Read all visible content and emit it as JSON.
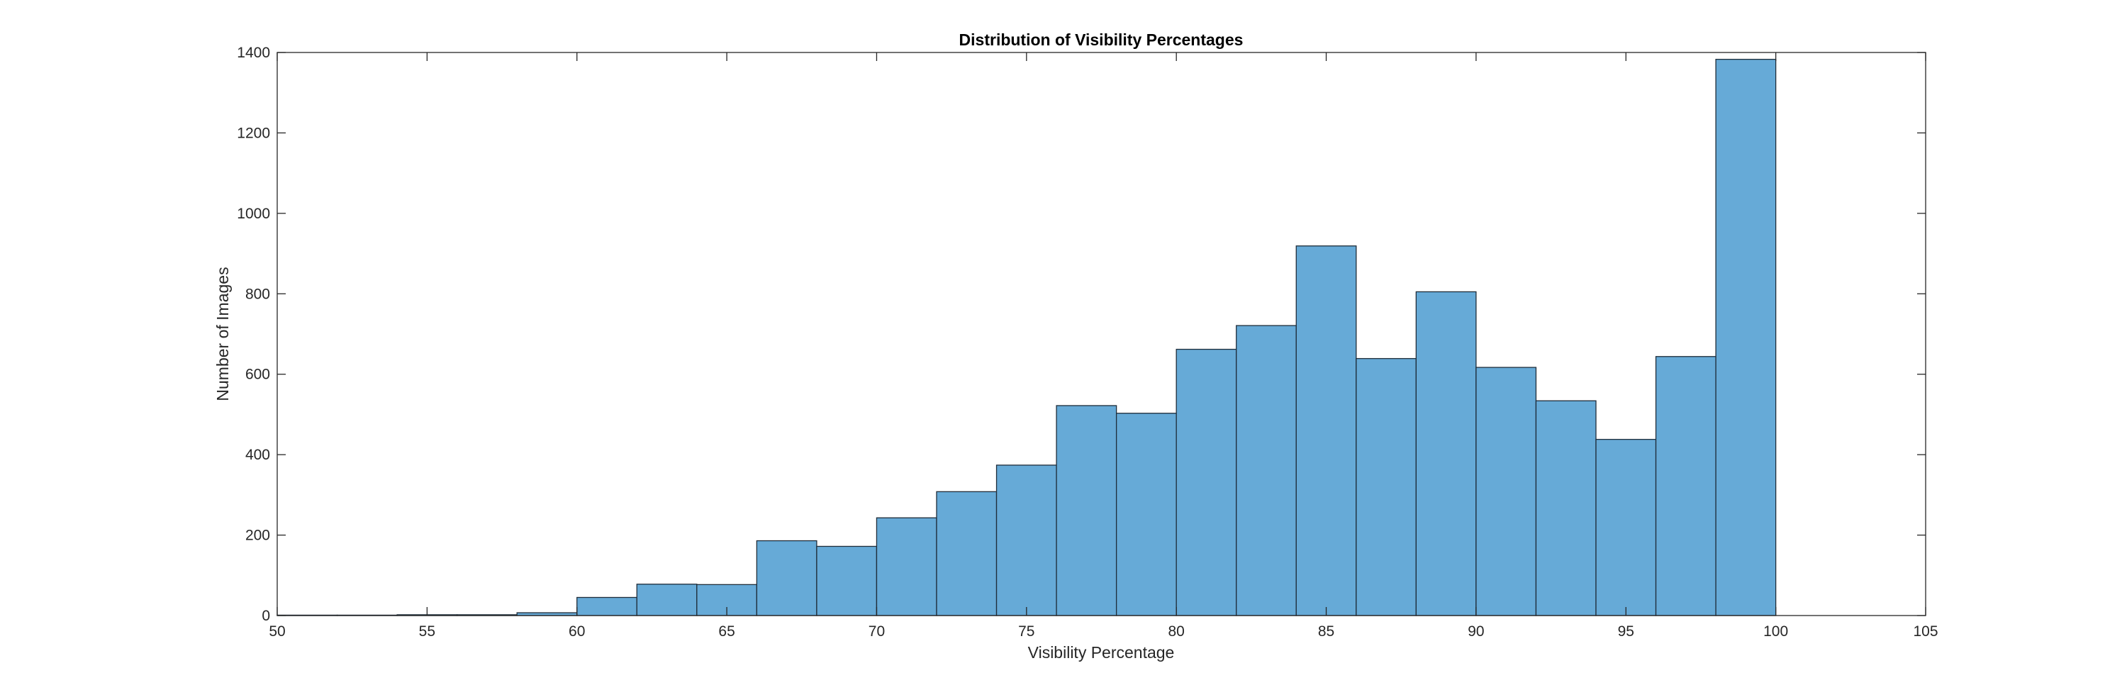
{
  "chart_data": {
    "type": "bar",
    "title": "Distribution of Visibility Percentages",
    "xlabel": "Visibility Percentage",
    "ylabel": "Number of Images",
    "xlim": [
      50,
      105
    ],
    "ylim": [
      0,
      1400
    ],
    "xticks": [
      50,
      55,
      60,
      65,
      70,
      75,
      80,
      85,
      90,
      95,
      100,
      105
    ],
    "yticks": [
      0,
      200,
      400,
      600,
      800,
      1000,
      1200,
      1400
    ],
    "bin_width": 2,
    "bins": [
      {
        "start": 50,
        "end": 52,
        "count": 1
      },
      {
        "start": 52,
        "end": 54,
        "count": 1
      },
      {
        "start": 54,
        "end": 56,
        "count": 2
      },
      {
        "start": 56,
        "end": 58,
        "count": 2
      },
      {
        "start": 58,
        "end": 60,
        "count": 7
      },
      {
        "start": 60,
        "end": 62,
        "count": 45
      },
      {
        "start": 62,
        "end": 64,
        "count": 78
      },
      {
        "start": 64,
        "end": 66,
        "count": 77
      },
      {
        "start": 66,
        "end": 68,
        "count": 186
      },
      {
        "start": 68,
        "end": 70,
        "count": 172
      },
      {
        "start": 70,
        "end": 72,
        "count": 243
      },
      {
        "start": 72,
        "end": 74,
        "count": 308
      },
      {
        "start": 74,
        "end": 76,
        "count": 374
      },
      {
        "start": 76,
        "end": 78,
        "count": 522
      },
      {
        "start": 78,
        "end": 80,
        "count": 503
      },
      {
        "start": 80,
        "end": 82,
        "count": 662
      },
      {
        "start": 82,
        "end": 84,
        "count": 721
      },
      {
        "start": 84,
        "end": 86,
        "count": 919
      },
      {
        "start": 86,
        "end": 88,
        "count": 639
      },
      {
        "start": 88,
        "end": 90,
        "count": 805
      },
      {
        "start": 90,
        "end": 92,
        "count": 617
      },
      {
        "start": 92,
        "end": 94,
        "count": 534
      },
      {
        "start": 94,
        "end": 96,
        "count": 438
      },
      {
        "start": 96,
        "end": 98,
        "count": 644
      },
      {
        "start": 98,
        "end": 100,
        "count": 1383
      }
    ],
    "bar_color": "#66aad7",
    "bar_edge_color": "#1f2d3a",
    "grid": false,
    "legend": false
  }
}
